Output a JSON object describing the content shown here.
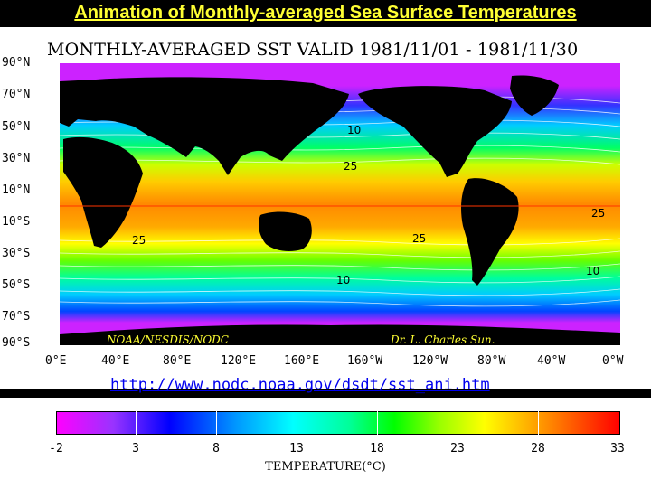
{
  "page_title": "Animation of Monthly-averaged Sea Surface Temperatures",
  "map": {
    "title": "MONTHLY-AVERAGED SST VALID 1981/11/01 - 1981/11/30",
    "latitude_labels": [
      "90°N",
      "70°N",
      "50°N",
      "30°N",
      "10°N",
      "10°S",
      "30°S",
      "50°S",
      "70°S",
      "90°S"
    ],
    "longitude_labels": [
      "0°E",
      "40°E",
      "80°E",
      "120°E",
      "160°E",
      "160°W",
      "120°W",
      "80°W",
      "40°W",
      "0°W"
    ],
    "contour_labels": [
      "10",
      "25",
      "25",
      "25",
      "25",
      "10",
      "10",
      "10"
    ],
    "credit_left": "NOAA/NESDIS/NODC",
    "credit_right": "Dr. L. Charles Sun.",
    "colors": {
      "land": "#000000",
      "ice": "#cc22ff",
      "warm": "#ff7f00",
      "equator_line": "#ff3300",
      "credit": "#ffff33"
    }
  },
  "url": "http://www.nodc.noaa.gov/dsdt/sst_ani.htm",
  "legend": {
    "title": "TEMPERATURE(°C)",
    "tick_labels": [
      "-2",
      "3",
      "8",
      "13",
      "18",
      "23",
      "28",
      "33"
    ]
  }
}
